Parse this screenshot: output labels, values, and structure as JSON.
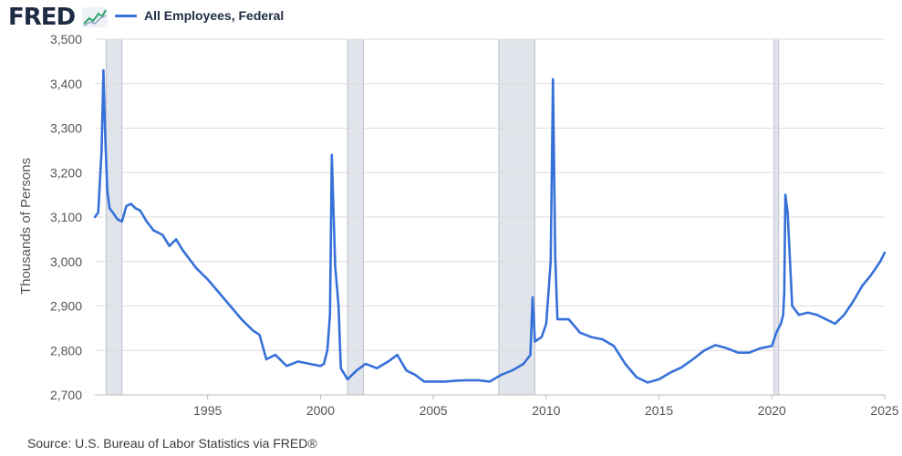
{
  "header": {
    "logo_text": "FRED",
    "logo_icon": "trend-line-icon"
  },
  "source_note": "Source: U.S. Bureau of Labor Statistics via FRED®",
  "colors": {
    "series": "#3671d9",
    "recession": "#e1e4ea",
    "grid": "#dcdcdc",
    "text": "#555555"
  },
  "chart_data": {
    "type": "line",
    "title": "",
    "xlabel": "",
    "ylabel": "Thousands of Persons",
    "xlim": [
      1990.0,
      2025.0
    ],
    "ylim": [
      2700,
      3500
    ],
    "x_ticks": [
      "1995",
      "2000",
      "2005",
      "2010",
      "2015",
      "2020",
      "2025"
    ],
    "y_ticks": [
      "2,700",
      "2,800",
      "2,900",
      "3,000",
      "3,100",
      "3,200",
      "3,300",
      "3,400",
      "3,500"
    ],
    "grid": true,
    "legend_position": "top-left",
    "recessions": [
      [
        1990.5,
        1991.2
      ],
      [
        2001.2,
        2001.9
      ],
      [
        2007.9,
        2009.5
      ],
      [
        2020.1,
        2020.3
      ]
    ],
    "series": [
      {
        "name": "All Employees, Federal",
        "x": [
          1990.0,
          1990.15,
          1990.3,
          1990.38,
          1990.45,
          1990.55,
          1990.65,
          1990.8,
          1991.0,
          1991.2,
          1991.4,
          1991.6,
          1991.8,
          1992.0,
          1992.3,
          1992.6,
          1993.0,
          1993.3,
          1993.6,
          1993.9,
          1994.2,
          1994.5,
          1995.0,
          1995.5,
          1996.0,
          1996.5,
          1997.0,
          1997.3,
          1997.6,
          1998.0,
          1998.5,
          1999.0,
          1999.5,
          2000.0,
          2000.15,
          2000.3,
          2000.42,
          2000.5,
          2000.65,
          2000.8,
          2000.9,
          2001.2,
          2001.6,
          2002.0,
          2002.5,
          2003.0,
          2003.4,
          2003.8,
          2004.2,
          2004.6,
          2005.0,
          2005.5,
          2006.0,
          2006.5,
          2007.0,
          2007.5,
          2008.0,
          2008.5,
          2009.0,
          2009.3,
          2009.4,
          2009.5,
          2009.8,
          2010.0,
          2010.2,
          2010.3,
          2010.4,
          2010.5,
          2010.7,
          2011.0,
          2011.5,
          2012.0,
          2012.5,
          2013.0,
          2013.5,
          2014.0,
          2014.5,
          2015.0,
          2015.5,
          2016.0,
          2016.5,
          2017.0,
          2017.5,
          2018.0,
          2018.5,
          2019.0,
          2019.5,
          2020.0,
          2020.2,
          2020.4,
          2020.5,
          2020.55,
          2020.6,
          2020.7,
          2020.9,
          2021.2,
          2021.6,
          2022.0,
          2022.4,
          2022.8,
          2023.2,
          2023.6,
          2024.0,
          2024.4,
          2024.8,
          2025.0
        ],
        "y": [
          3100,
          3110,
          3250,
          3430,
          3300,
          3160,
          3120,
          3110,
          3095,
          3090,
          3125,
          3130,
          3120,
          3115,
          3090,
          3070,
          3060,
          3035,
          3050,
          3025,
          3005,
          2985,
          2960,
          2930,
          2900,
          2870,
          2845,
          2835,
          2780,
          2790,
          2765,
          2775,
          2770,
          2765,
          2770,
          2800,
          2880,
          3240,
          2990,
          2900,
          2760,
          2735,
          2755,
          2770,
          2760,
          2775,
          2790,
          2755,
          2745,
          2730,
          2730,
          2730,
          2732,
          2733,
          2733,
          2730,
          2745,
          2755,
          2770,
          2790,
          2920,
          2820,
          2830,
          2860,
          3000,
          3410,
          3010,
          2870,
          2870,
          2870,
          2840,
          2830,
          2825,
          2810,
          2770,
          2740,
          2728,
          2735,
          2750,
          2762,
          2780,
          2800,
          2812,
          2805,
          2795,
          2795,
          2805,
          2810,
          2840,
          2860,
          2880,
          2930,
          3150,
          3110,
          2900,
          2880,
          2885,
          2880,
          2870,
          2860,
          2880,
          2910,
          2945,
          2970,
          3000,
          3020
        ]
      }
    ]
  }
}
